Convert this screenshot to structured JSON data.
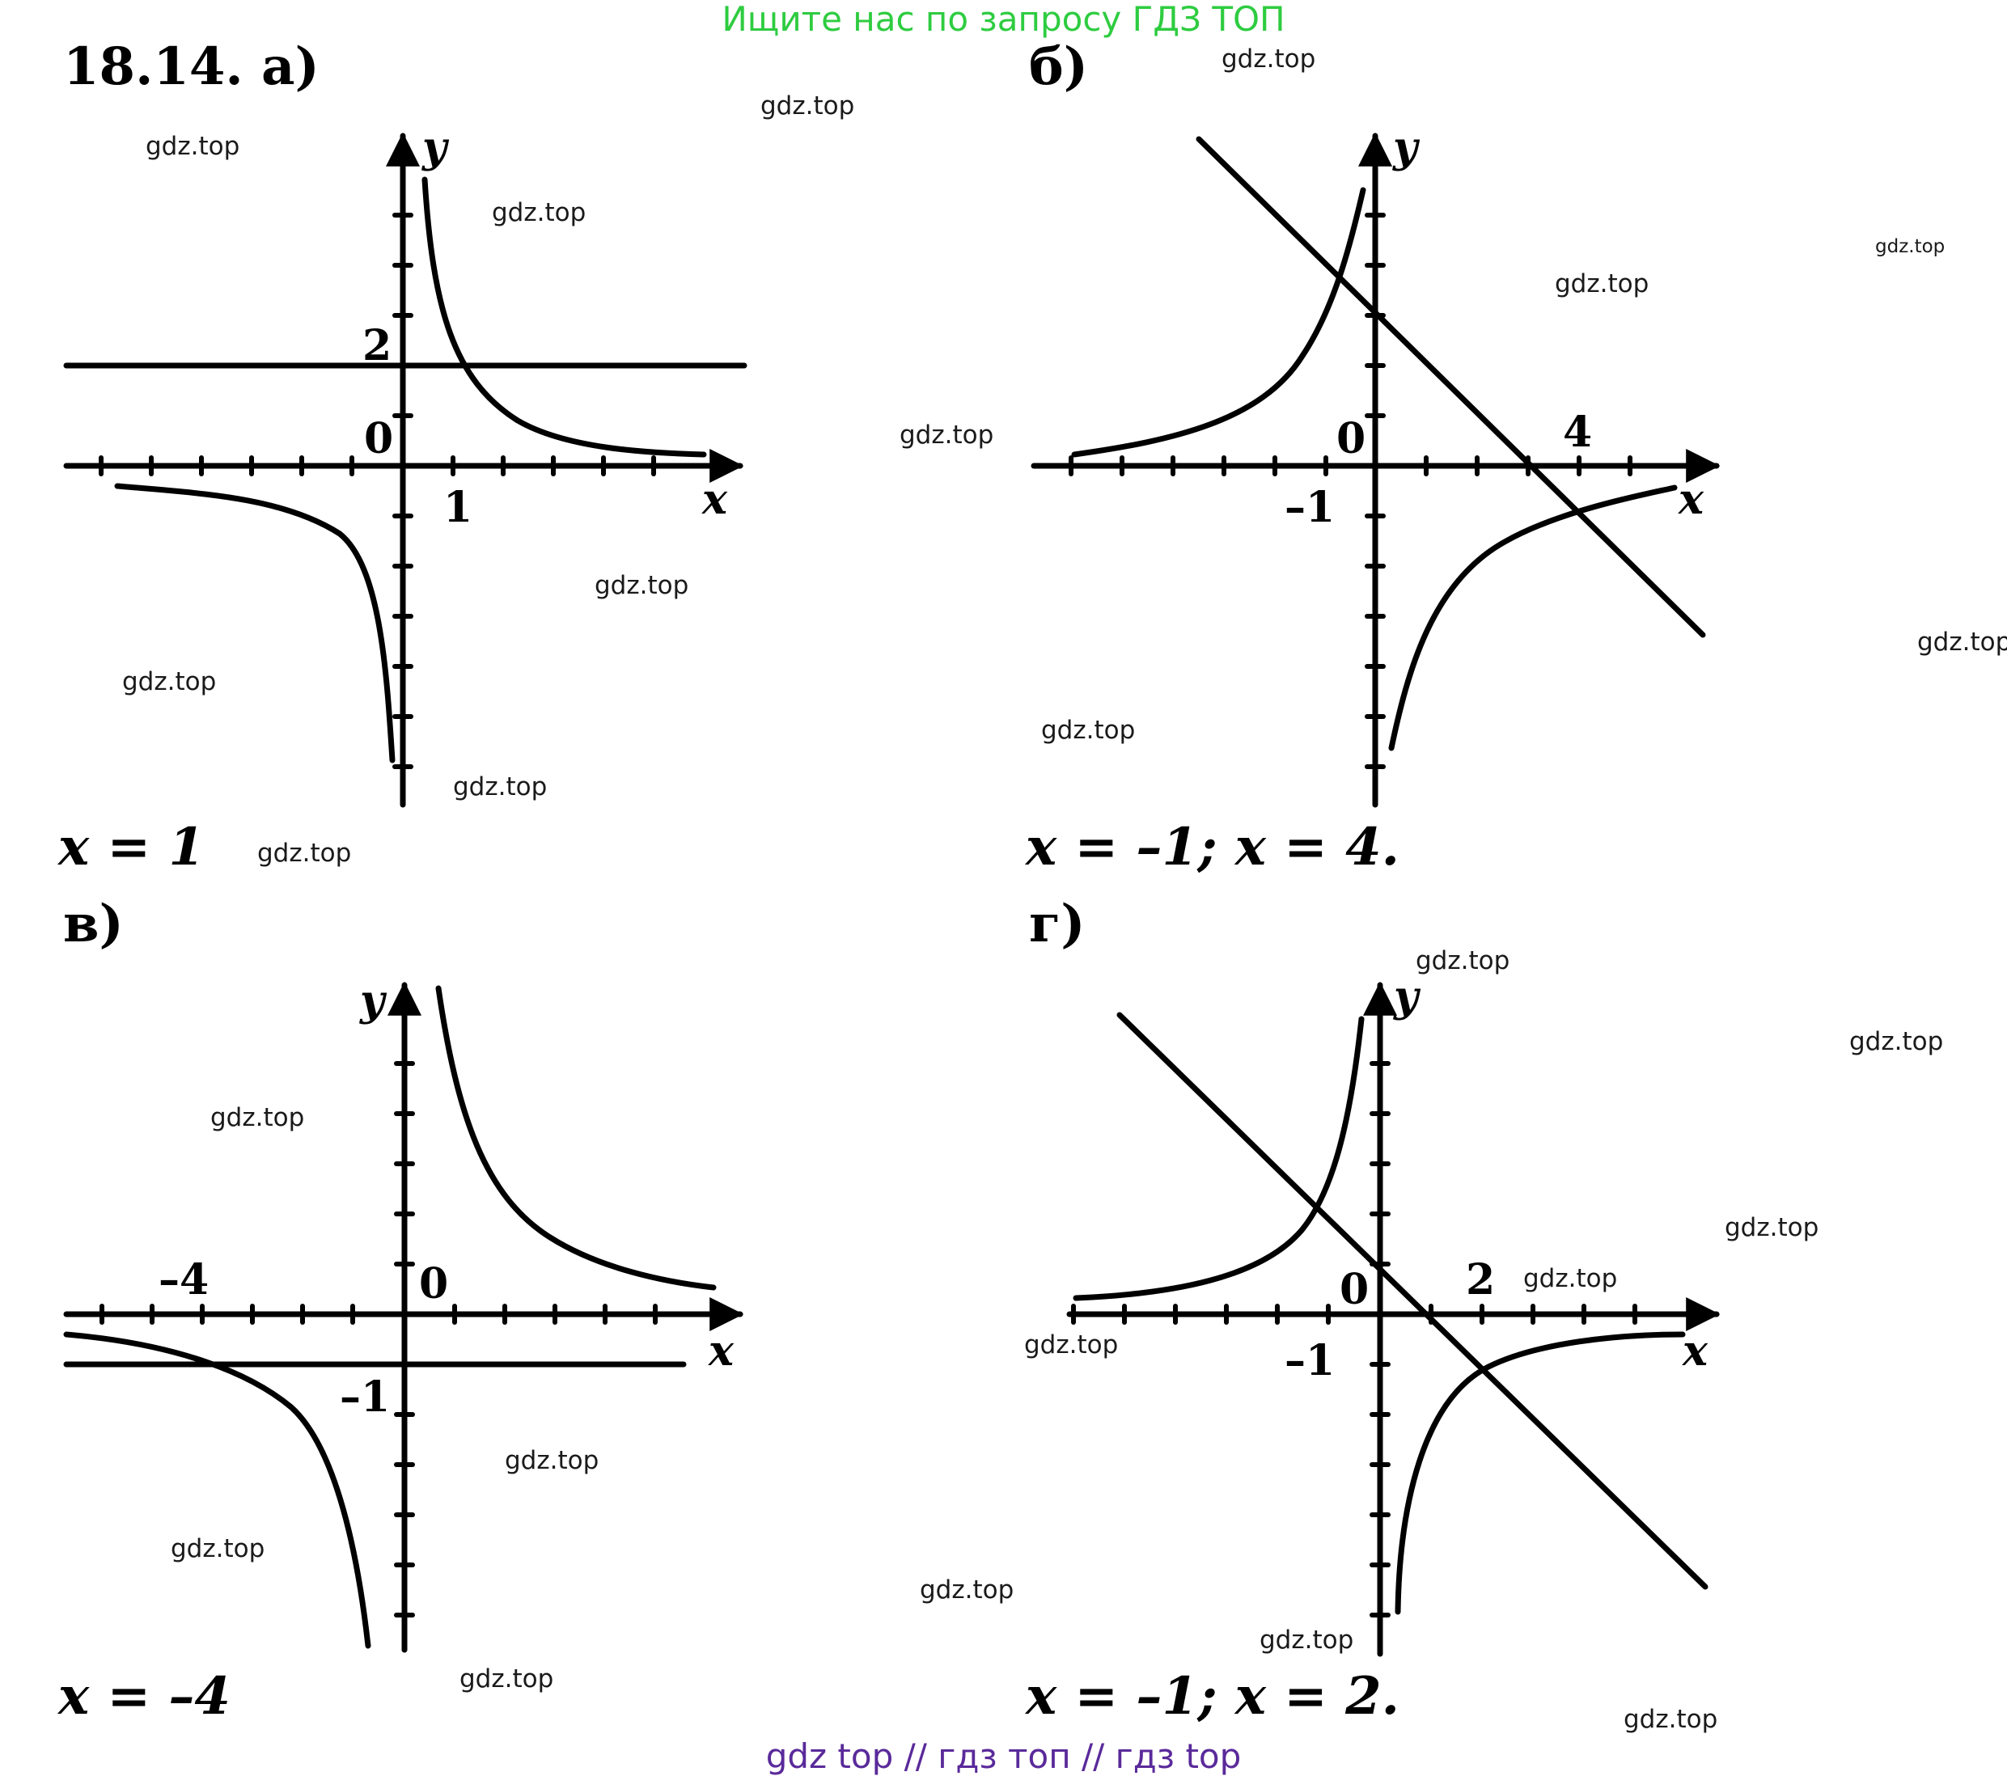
{
  "top_banner": "Ищите нас по запросу ГДЗ ТОП",
  "bottom_banner": "gdz top  //  гдз топ  //  гдз top",
  "problem_label": "18.14.",
  "watermark": "gdz.top",
  "panels": {
    "a": {
      "label": "а)",
      "answer": "x = 1",
      "ticks": {
        "y2": "2",
        "origin": "0",
        "x1": "1"
      },
      "axis_x": "x",
      "axis_y": "y"
    },
    "b": {
      "label": "б)",
      "answer": "x = –1; x = 4.",
      "ticks": {
        "origin": "0",
        "x4": "4",
        "xm1": "–1"
      },
      "axis_x": "x",
      "axis_y": "y"
    },
    "v": {
      "label": "в)",
      "answer": "x = –4",
      "ticks": {
        "xm4": "–4",
        "origin": "0",
        "ym1": "–1"
      },
      "axis_x": "x",
      "axis_y": "y"
    },
    "g": {
      "label": "г)",
      "answer": "x = –1; x = 2.",
      "ticks": {
        "origin": "0",
        "x2": "2",
        "xm1": "–1"
      },
      "axis_x": "x",
      "axis_y": "y"
    }
  }
}
